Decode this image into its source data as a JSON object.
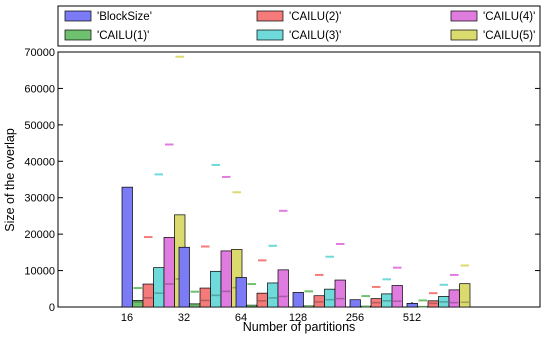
{
  "chart_data": {
    "type": "bar",
    "title": "",
    "xlabel": "Number of partitions",
    "ylabel": "Size of the overlap",
    "categories": [
      "16",
      "32",
      "64",
      "128",
      "256",
      "512"
    ],
    "ylim": [
      0,
      70000
    ],
    "yticks": [
      0,
      10000,
      20000,
      30000,
      40000,
      50000,
      60000,
      70000
    ],
    "grid": false,
    "legend_position": "top (outside, above plot)",
    "series": [
      {
        "name": "'BlockSize'",
        "color": "#7b7bf5",
        "values": [
          32900,
          16400,
          8100,
          4000,
          2000,
          1000
        ],
        "mean": [
          null,
          null,
          null,
          null,
          null,
          null
        ],
        "max": [
          null,
          null,
          null,
          null,
          null,
          null
        ]
      },
      {
        "name": "'CAILU(1)'",
        "color": "#6fc06f",
        "values": [
          1800,
          900,
          500,
          300,
          200,
          100
        ],
        "mean": [
          1400,
          700,
          350,
          250,
          150,
          80
        ],
        "max": [
          5200,
          4200,
          6300,
          4300,
          3000,
          1800
        ]
      },
      {
        "name": "'CAILU(2)'",
        "color": "#f57b7b",
        "values": [
          6300,
          5200,
          3800,
          3100,
          2300,
          1700
        ],
        "mean": [
          2500,
          1800,
          1700,
          1400,
          1200,
          1000
        ],
        "max": [
          19200,
          16600,
          12800,
          8800,
          5500,
          3800
        ]
      },
      {
        "name": "'CAILU(3)'",
        "color": "#6fdada",
        "values": [
          10800,
          9800,
          6600,
          4900,
          3600,
          2900
        ],
        "mean": [
          3800,
          3200,
          2500,
          2000,
          1700,
          1400
        ],
        "max": [
          36400,
          39000,
          16800,
          13800,
          7600,
          6100
        ]
      },
      {
        "name": "'CAILU(4)'",
        "color": "#e07be0",
        "values": [
          19100,
          15400,
          10200,
          7400,
          5900,
          4700
        ],
        "mean": [
          6300,
          4300,
          2900,
          2300,
          1600,
          1200
        ],
        "max": [
          44600,
          35700,
          26400,
          17300,
          10800,
          8800
        ]
      },
      {
        "name": "'CAILU(5)'",
        "color": "#dada6f",
        "values": [
          25300,
          15800,
          null,
          null,
          null,
          6400
        ],
        "mean": [
          7700,
          5300,
          null,
          null,
          null,
          1300
        ],
        "max": [
          68700,
          31500,
          null,
          null,
          null,
          11400
        ]
      }
    ]
  }
}
